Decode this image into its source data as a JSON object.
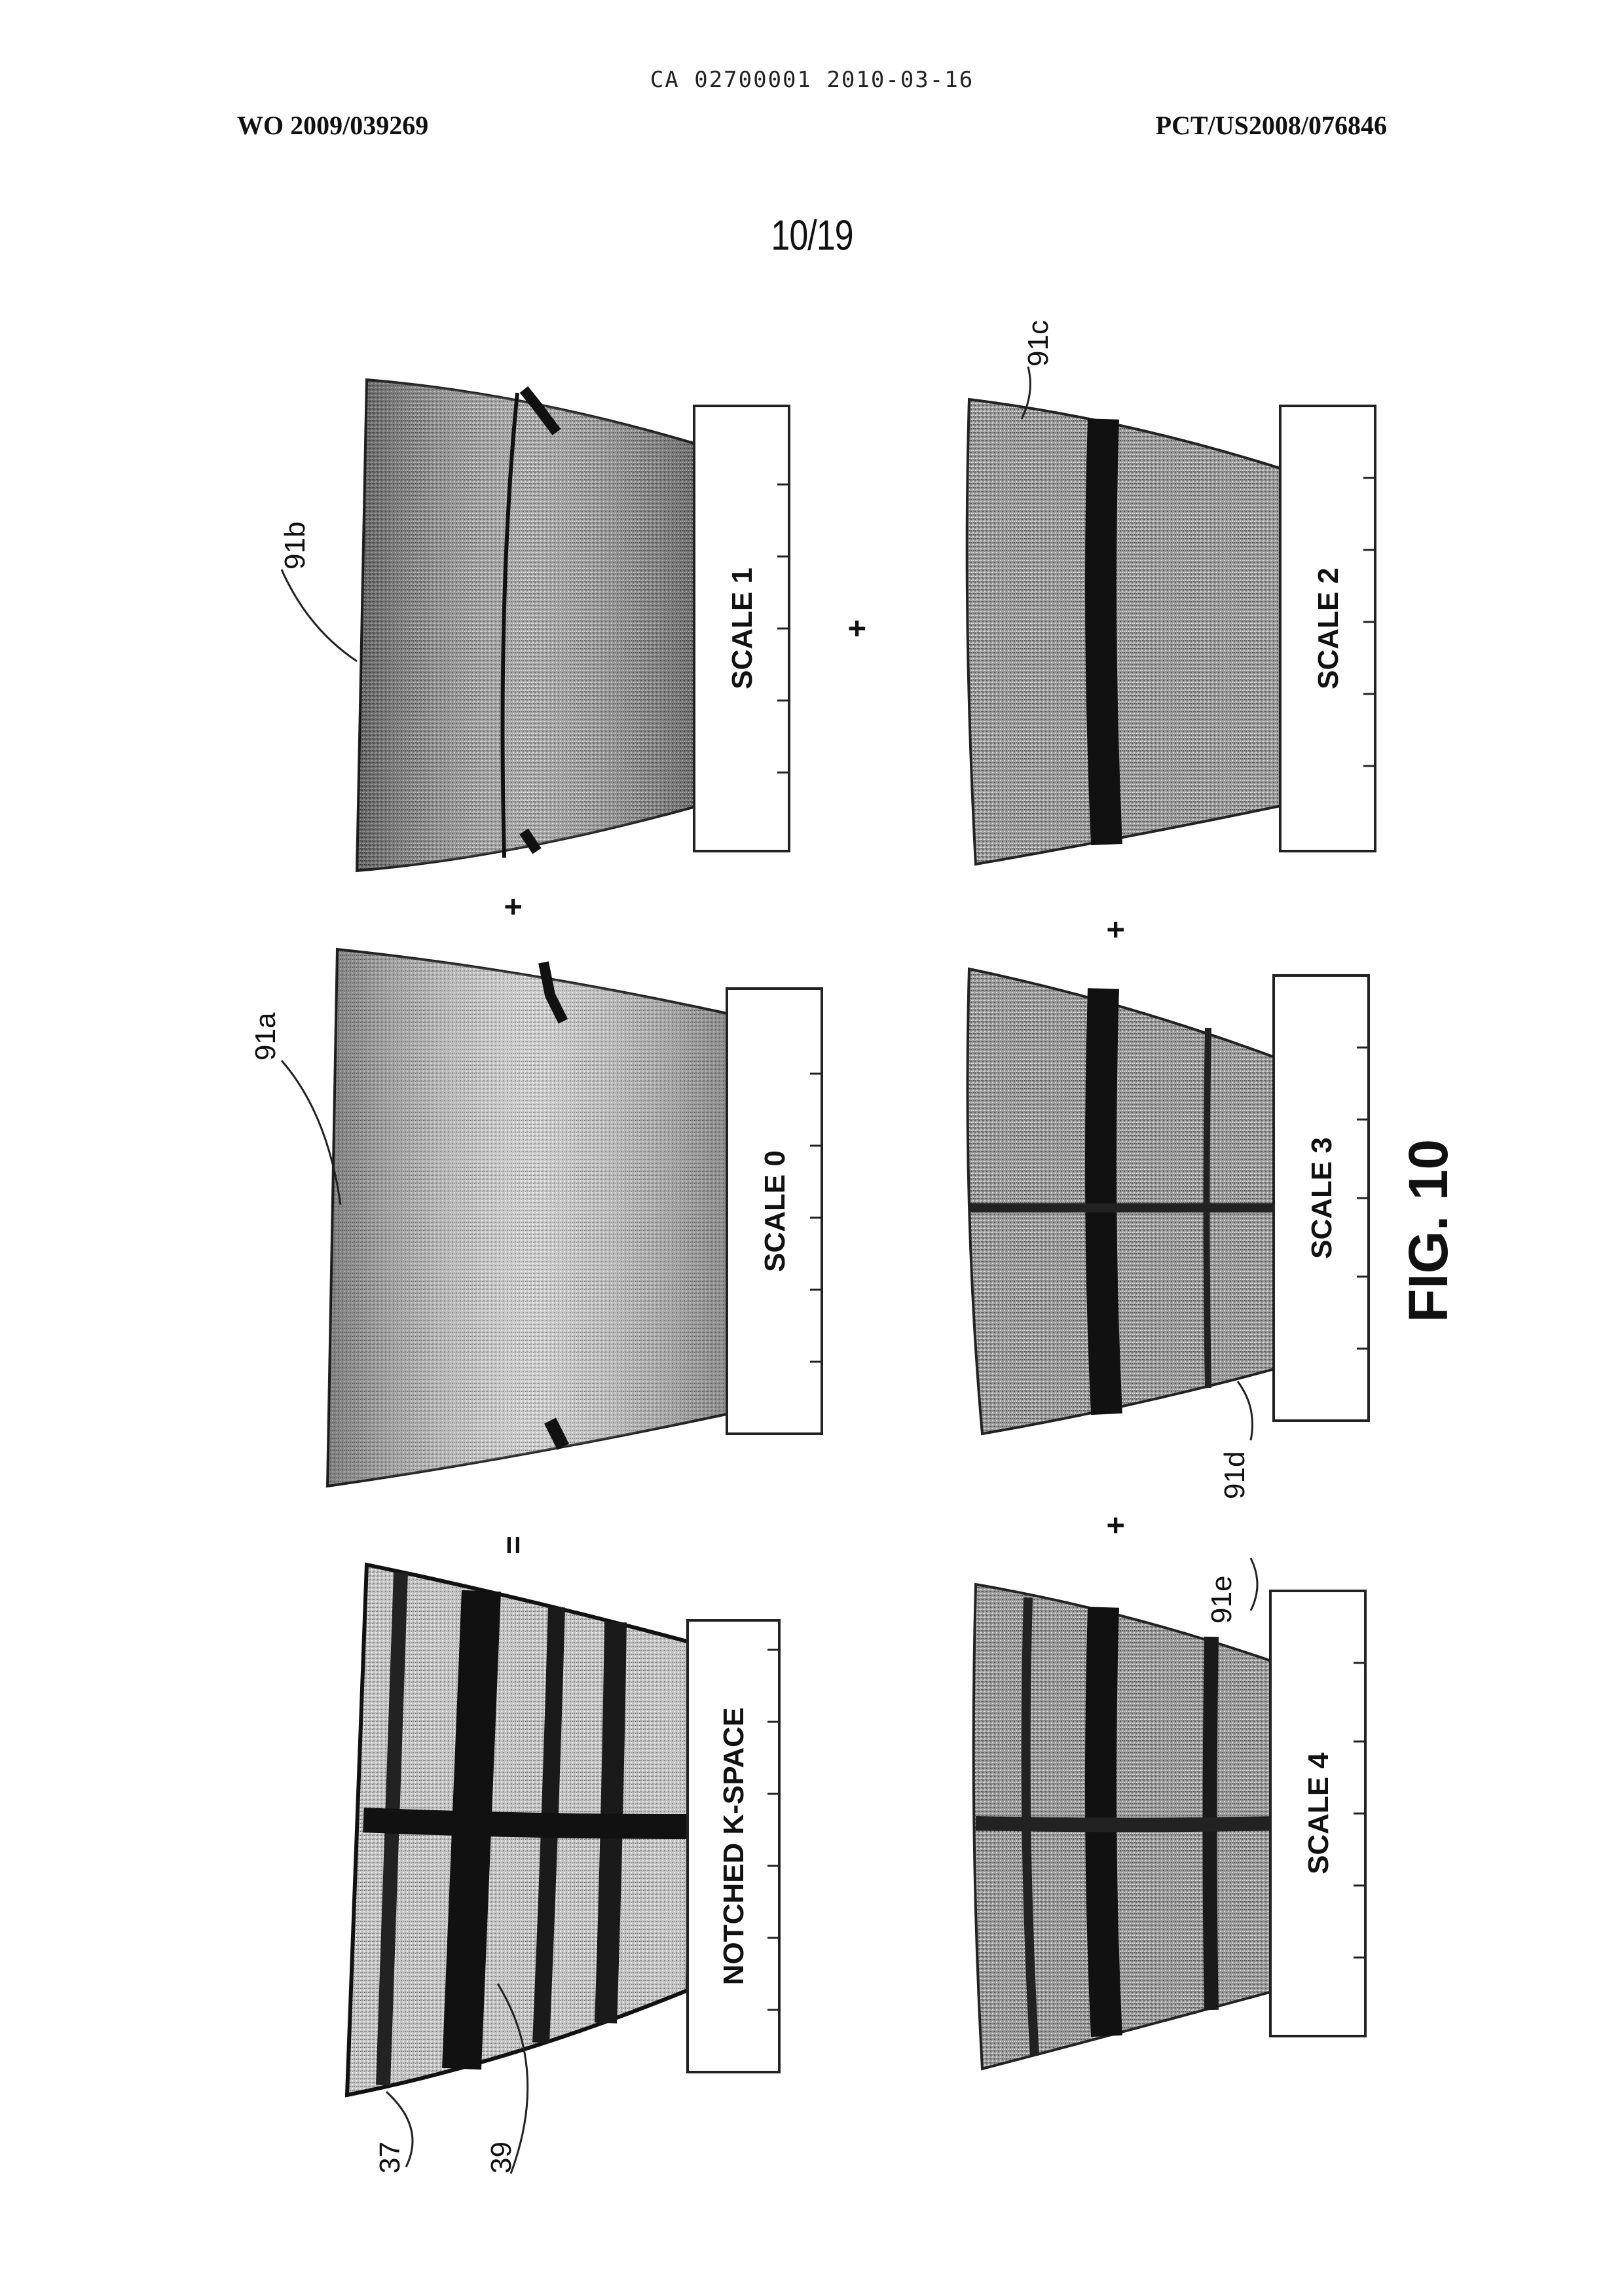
{
  "header": {
    "doc_id": "CA 02700001 2010-03-16",
    "publication_number": "WO 2009/039269",
    "application_number": "PCT/US2008/076846"
  },
  "sheet_number": "10/19",
  "figure_label": "FIG. 10",
  "panels": [
    {
      "label": "NOTCHED K-SPACE",
      "refs": [
        "37",
        "39"
      ]
    },
    {
      "label": "SCALE 0",
      "refs": [
        "91a"
      ]
    },
    {
      "label": "SCALE 1",
      "refs": [
        "91b"
      ]
    },
    {
      "label": "SCALE 2",
      "refs": [
        "91c"
      ]
    },
    {
      "label": "SCALE 3",
      "refs": [
        "91d"
      ]
    },
    {
      "label": "SCALE 4",
      "refs": [
        "91e"
      ]
    }
  ],
  "operators": [
    "=",
    "+",
    "+",
    "+",
    "+"
  ]
}
